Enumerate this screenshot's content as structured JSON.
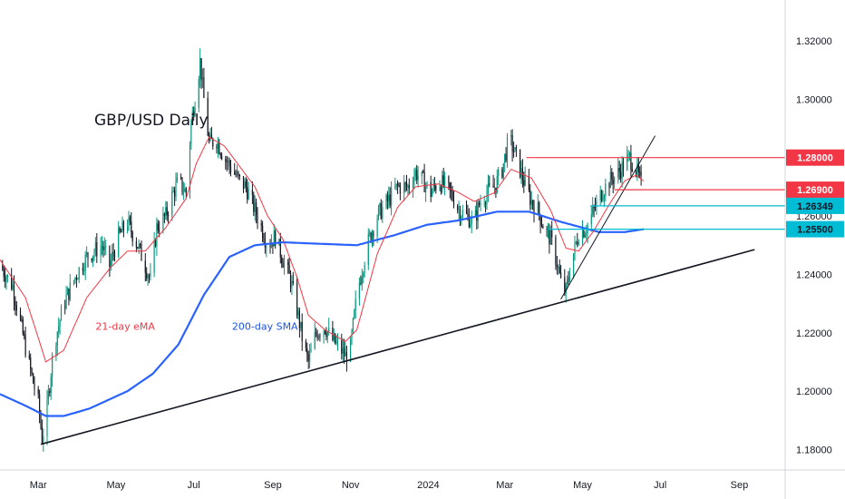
{
  "chart_data": {
    "type": "candlestick",
    "title": "GBP/USD Daily",
    "y_ticks": [
      "1.18000",
      "1.20000",
      "1.22000",
      "1.24000",
      "1.26000",
      "1.28000",
      "1.30000",
      "1.32000"
    ],
    "ylim": [
      1.173,
      1.334
    ],
    "x_ticks": [
      {
        "label": "Mar",
        "t": 0
      },
      {
        "label": "May",
        "t": 61
      },
      {
        "label": "Jul",
        "t": 122
      },
      {
        "label": "Sep",
        "t": 184
      },
      {
        "label": "Nov",
        "t": 245
      },
      {
        "label": "2024",
        "t": 306
      },
      {
        "label": "Mar",
        "t": 366
      },
      {
        "label": "May",
        "t": 427
      },
      {
        "label": "Jul",
        "t": 488
      },
      {
        "label": "Sep",
        "t": 550
      }
    ],
    "xlim": [
      -30,
      586
    ],
    "candle_up_color": "#089981",
    "candle_down_color": "#131722",
    "price_anchors": [
      [
        -30,
        1.243
      ],
      [
        -20,
        1.236
      ],
      [
        -10,
        1.215
      ],
      [
        -4,
        1.203
      ],
      [
        0,
        1.196
      ],
      [
        3,
        1.184
      ],
      [
        6,
        1.19
      ],
      [
        12,
        1.215
      ],
      [
        20,
        1.23
      ],
      [
        30,
        1.24
      ],
      [
        38,
        1.246
      ],
      [
        44,
        1.248
      ],
      [
        50,
        1.25
      ],
      [
        56,
        1.243
      ],
      [
        62,
        1.252
      ],
      [
        70,
        1.258
      ],
      [
        78,
        1.25
      ],
      [
        84,
        1.243
      ],
      [
        88,
        1.238
      ],
      [
        93,
        1.256
      ],
      [
        100,
        1.26
      ],
      [
        106,
        1.268
      ],
      [
        110,
        1.272
      ],
      [
        116,
        1.268
      ],
      [
        120,
        1.292
      ],
      [
        124,
        1.303
      ],
      [
        127,
        1.313
      ],
      [
        130,
        1.3
      ],
      [
        134,
        1.285
      ],
      [
        140,
        1.286
      ],
      [
        146,
        1.28
      ],
      [
        152,
        1.276
      ],
      [
        158,
        1.272
      ],
      [
        163,
        1.27
      ],
      [
        170,
        1.262
      ],
      [
        176,
        1.255
      ],
      [
        180,
        1.25
      ],
      [
        186,
        1.253
      ],
      [
        192,
        1.245
      ],
      [
        198,
        1.238
      ],
      [
        203,
        1.228
      ],
      [
        208,
        1.216
      ],
      [
        212,
        1.21
      ],
      [
        218,
        1.22
      ],
      [
        225,
        1.222
      ],
      [
        230,
        1.218
      ],
      [
        236,
        1.215
      ],
      [
        241,
        1.212
      ],
      [
        245,
        1.215
      ],
      [
        250,
        1.233
      ],
      [
        258,
        1.25
      ],
      [
        266,
        1.26
      ],
      [
        274,
        1.265
      ],
      [
        282,
        1.27
      ],
      [
        290,
        1.27
      ],
      [
        296,
        1.275
      ],
      [
        302,
        1.272
      ],
      [
        308,
        1.268
      ],
      [
        314,
        1.272
      ],
      [
        320,
        1.27
      ],
      [
        326,
        1.266
      ],
      [
        330,
        1.262
      ],
      [
        336,
        1.26
      ],
      [
        342,
        1.258
      ],
      [
        346,
        1.264
      ],
      [
        352,
        1.268
      ],
      [
        358,
        1.27
      ],
      [
        364,
        1.276
      ],
      [
        368,
        1.284
      ],
      [
        371,
        1.285
      ],
      [
        375,
        1.28
      ],
      [
        381,
        1.272
      ],
      [
        387,
        1.265
      ],
      [
        392,
        1.262
      ],
      [
        396,
        1.257
      ],
      [
        402,
        1.252
      ],
      [
        407,
        1.244
      ],
      [
        411,
        1.235
      ],
      [
        414,
        1.234
      ],
      [
        418,
        1.244
      ],
      [
        424,
        1.254
      ],
      [
        430,
        1.256
      ],
      [
        436,
        1.262
      ],
      [
        442,
        1.268
      ],
      [
        448,
        1.272
      ],
      [
        454,
        1.274
      ],
      [
        460,
        1.278
      ],
      [
        464,
        1.28
      ],
      [
        469,
        1.276
      ],
      [
        473,
        1.271
      ],
      [
        475,
        1.266
      ]
    ],
    "ema21_anchors": [
      [
        -30,
        1.245
      ],
      [
        -10,
        1.232
      ],
      [
        6,
        1.21
      ],
      [
        20,
        1.214
      ],
      [
        38,
        1.232
      ],
      [
        56,
        1.242
      ],
      [
        70,
        1.248
      ],
      [
        84,
        1.248
      ],
      [
        100,
        1.256
      ],
      [
        116,
        1.266
      ],
      [
        124,
        1.278
      ],
      [
        134,
        1.287
      ],
      [
        146,
        1.284
      ],
      [
        158,
        1.277
      ],
      [
        170,
        1.27
      ],
      [
        180,
        1.26
      ],
      [
        192,
        1.252
      ],
      [
        203,
        1.239
      ],
      [
        212,
        1.226
      ],
      [
        225,
        1.221
      ],
      [
        241,
        1.217
      ],
      [
        250,
        1.221
      ],
      [
        266,
        1.247
      ],
      [
        282,
        1.263
      ],
      [
        296,
        1.27
      ],
      [
        314,
        1.271
      ],
      [
        330,
        1.268
      ],
      [
        342,
        1.265
      ],
      [
        358,
        1.268
      ],
      [
        371,
        1.276
      ],
      [
        387,
        1.273
      ],
      [
        402,
        1.262
      ],
      [
        414,
        1.249
      ],
      [
        424,
        1.248
      ],
      [
        436,
        1.255
      ],
      [
        448,
        1.264
      ],
      [
        460,
        1.272
      ],
      [
        469,
        1.274
      ],
      [
        475,
        1.272
      ]
    ],
    "sma200_anchors": [
      [
        -30,
        1.199
      ],
      [
        -10,
        1.195
      ],
      [
        6,
        1.1915
      ],
      [
        20,
        1.1915
      ],
      [
        40,
        1.194
      ],
      [
        70,
        1.2
      ],
      [
        90,
        1.206
      ],
      [
        110,
        1.216
      ],
      [
        130,
        1.233
      ],
      [
        150,
        1.246
      ],
      [
        170,
        1.25
      ],
      [
        192,
        1.251
      ],
      [
        220,
        1.2505
      ],
      [
        250,
        1.25
      ],
      [
        280,
        1.2535
      ],
      [
        305,
        1.257
      ],
      [
        330,
        1.2585
      ],
      [
        360,
        1.2615
      ],
      [
        385,
        1.2615
      ],
      [
        410,
        1.258
      ],
      [
        440,
        1.2545
      ],
      [
        460,
        1.2545
      ],
      [
        475,
        1.2555
      ]
    ],
    "trendline_lower": {
      "t1": 2,
      "p1": 1.1818,
      "t2": 562,
      "p2": 1.2485,
      "color": "#131722"
    },
    "trendline_steep": {
      "t1": 410,
      "p1": 1.2315,
      "t2": 484,
      "p2": 1.2875,
      "color": "#131722"
    },
    "levels": [
      {
        "value": 1.28,
        "label": "1.28000",
        "t_start": 383,
        "color": "#f23645"
      },
      {
        "value": 1.269,
        "label": "1.26900",
        "t_start": 452,
        "color": "#f23645"
      },
      {
        "value": 1.26349,
        "label": "1.26349",
        "t_start": 433,
        "color": "#00bcd4"
      },
      {
        "value": 1.2555,
        "label": "1.25500",
        "t_start": 400,
        "color": "#00bcd4"
      }
    ],
    "series": [
      {
        "name": "21-day eMA",
        "color": "#f23645"
      },
      {
        "name": "200-day SMA",
        "color": "#2962ff"
      }
    ],
    "annotation_positions": {
      "ema_label": {
        "t": 45,
        "p": 1.221
      },
      "sma_label": {
        "t": 152,
        "p": 1.221
      }
    }
  }
}
